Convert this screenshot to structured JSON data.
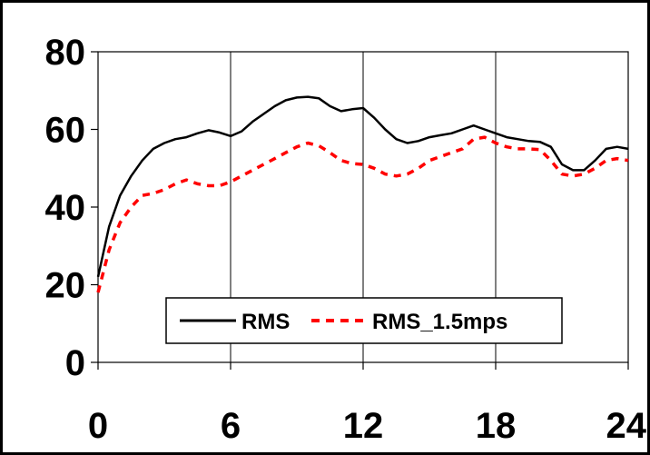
{
  "chart_data": {
    "type": "line",
    "title": "",
    "xlabel": "",
    "ylabel": "",
    "xlim": [
      0,
      24
    ],
    "ylim": [
      0,
      80
    ],
    "xticks": [
      0,
      6,
      12,
      18,
      24
    ],
    "yticks": [
      0,
      20,
      40,
      60,
      80
    ],
    "x_tick_labels": [
      "0",
      "6",
      "12",
      "18",
      "24"
    ],
    "y_tick_labels": [
      "0",
      "20",
      "40",
      "60",
      "80"
    ],
    "grid": "vertical",
    "legend_position": "lower-center",
    "series": [
      {
        "name": "RMS",
        "color": "#000000",
        "style": "solid",
        "x": [
          0,
          0.5,
          1,
          1.5,
          2,
          2.5,
          3,
          3.5,
          4,
          4.5,
          5,
          5.5,
          6,
          6.5,
          7,
          7.5,
          8,
          8.5,
          9,
          9.5,
          10,
          10.5,
          11,
          11.5,
          12,
          12.5,
          13,
          13.5,
          14,
          14.5,
          15,
          15.5,
          16,
          16.5,
          17,
          17.5,
          18,
          18.5,
          19,
          19.5,
          20,
          20.5,
          21,
          21.5,
          22,
          22.5,
          23,
          23.5,
          24
        ],
        "values": [
          22,
          35,
          43,
          48,
          52,
          55,
          56.5,
          57.5,
          58,
          59,
          59.8,
          59.2,
          58.3,
          59.5,
          62,
          64,
          66,
          67.5,
          68.2,
          68.4,
          68,
          66,
          64.7,
          65.2,
          65.5,
          63,
          60,
          57.5,
          56.5,
          57,
          58,
          58.5,
          59,
          60,
          61,
          60,
          59,
          58,
          57.5,
          57,
          56.8,
          55.5,
          51,
          49.5,
          49.5,
          52,
          55,
          55.5,
          55
        ]
      },
      {
        "name": "RMS_1.5mps",
        "color": "#ff0000",
        "style": "dashed",
        "x": [
          0,
          0.5,
          1,
          1.5,
          2,
          2.5,
          3,
          3.5,
          4,
          4.5,
          5,
          5.5,
          6,
          6.5,
          7,
          7.5,
          8,
          8.5,
          9,
          9.5,
          10,
          10.5,
          11,
          11.5,
          12,
          12.5,
          13,
          13.5,
          14,
          14.5,
          15,
          15.5,
          16,
          16.5,
          17,
          17.5,
          18,
          18.5,
          19,
          19.5,
          20,
          20.5,
          21,
          21.5,
          22,
          22.5,
          23,
          23.5,
          24
        ],
        "values": [
          18,
          29,
          36,
          40,
          43,
          43.5,
          44.5,
          46,
          47,
          46,
          45.5,
          45.5,
          46.5,
          48,
          49.5,
          51,
          52.5,
          54,
          55.5,
          56.5,
          55.8,
          54,
          52,
          51.2,
          51,
          50,
          48.5,
          48,
          48.5,
          50,
          52,
          53,
          54,
          55,
          57.5,
          58,
          56.5,
          55.5,
          55,
          55,
          54.8,
          52,
          48.5,
          48,
          48.5,
          50,
          52,
          52.5,
          52
        ]
      }
    ]
  }
}
